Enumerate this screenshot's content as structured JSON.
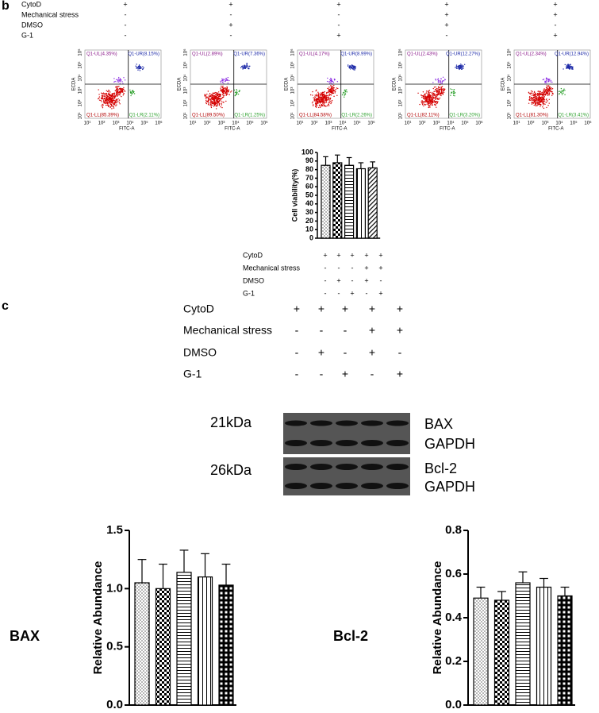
{
  "panel_b": {
    "label": "b",
    "treatments": {
      "rows": [
        {
          "name": "CytoD",
          "signs": [
            "+",
            "+",
            "+",
            "+",
            "+"
          ]
        },
        {
          "name": "Mechanical stress",
          "signs": [
            "-",
            "-",
            "-",
            "+",
            "+"
          ]
        },
        {
          "name": "DMSO",
          "signs": [
            "-",
            "+",
            "-",
            "+",
            "-"
          ]
        },
        {
          "name": "G-1",
          "signs": [
            "-",
            "-",
            "+",
            "-",
            "+"
          ]
        }
      ]
    },
    "flow_axis": {
      "x_label": "FITC-A",
      "y_label": "ECDA",
      "ticks": [
        "10¹",
        "10²",
        "10³",
        "10⁴",
        "10⁵",
        "10⁶"
      ]
    },
    "flow_plots": [
      {
        "UL": "Q1-UL(4.35%)",
        "UR": "Q1-UR(8.15%)",
        "LL": "Q1-LL(85.39%)",
        "LR": "Q1-LR(2.11%)"
      },
      {
        "UL": "Q1-UL(2.89%)",
        "UR": "Q1-UR(7.36%)",
        "LL": "Q1-LL(89.50%)",
        "LR": "Q1-LR(1.25%)"
      },
      {
        "UL": "Q1-UL(4.17%)",
        "UR": "Q1-UR(8.99%)",
        "LL": "Q1-LL(84.58%)",
        "LR": "Q1-LR(2.26%)"
      },
      {
        "UL": "Q1-UL(2.43%)",
        "UR": "Q1-UR(12.27%)",
        "LL": "Q1-LL(82.11%)",
        "LR": "Q1-LR(3.20%)"
      },
      {
        "UL": "Q1-UL(2.34%)",
        "UR": "Q1-UR(12.94%)",
        "LL": "Q1-LL(81.30%)",
        "LR": "Q1-LR(3.41%)"
      }
    ],
    "viability_treatments": {
      "rows": [
        {
          "name": "CytoD",
          "signs": [
            "+",
            "+",
            "+",
            "+",
            "+"
          ]
        },
        {
          "name": "Mechanical stress",
          "signs": [
            "-",
            "-",
            "-",
            "+",
            "+"
          ]
        },
        {
          "name": "DMSO",
          "signs": [
            "-",
            "+",
            "-",
            "+",
            "-"
          ]
        },
        {
          "name": "G-1",
          "signs": [
            "-",
            "-",
            "+",
            "-",
            "+"
          ]
        }
      ]
    }
  },
  "panel_c": {
    "label": "c",
    "treatments": {
      "rows": [
        {
          "name": "CytoD",
          "signs": [
            "+",
            "+",
            "+",
            "+",
            "+"
          ]
        },
        {
          "name": "Mechanical stress",
          "signs": [
            "-",
            "-",
            "-",
            "+",
            "+"
          ]
        },
        {
          "name": "DMSO",
          "signs": [
            "-",
            "+",
            "-",
            "+",
            "-"
          ]
        },
        {
          "name": "G-1",
          "signs": [
            "-",
            "-",
            "+",
            "-",
            "+"
          ]
        }
      ]
    },
    "blot": {
      "markers": [
        "21kDa",
        "26kDa"
      ],
      "proteins": [
        "BAX",
        "GAPDH",
        "Bcl-2",
        "GAPDH"
      ]
    },
    "bax_label": "BAX",
    "bcl2_label": "Bcl-2"
  },
  "chart_data": [
    {
      "type": "bar",
      "y_label": "Cell viability(%)",
      "color": "#000000",
      "values": [
        85,
        88,
        85,
        81,
        82
      ],
      "errors": [
        10,
        9,
        9,
        7,
        7
      ],
      "ylim": [
        0,
        100
      ],
      "yticks": [
        0,
        10,
        20,
        30,
        40,
        50,
        60,
        70,
        80,
        90,
        100
      ]
    },
    {
      "type": "bar",
      "y_label": "Relative Abundance",
      "color": "#000000",
      "values": [
        1.05,
        1.0,
        1.14,
        1.1,
        1.03
      ],
      "errors": [
        0.2,
        0.21,
        0.19,
        0.2,
        0.18
      ],
      "ylim": [
        0,
        1.5
      ],
      "yticks": [
        {
          "value": 0,
          "label": "0.0"
        },
        0.5,
        {
          "value": 1,
          "label": "1.0"
        },
        1.5
      ]
    },
    {
      "type": "bar",
      "y_label": "Relative Abundance",
      "color": "#000000",
      "values": [
        0.49,
        0.48,
        0.56,
        0.54,
        0.5
      ],
      "errors": [
        0.05,
        0.04,
        0.05,
        0.04,
        0.04
      ],
      "ylim": [
        0,
        0.8
      ],
      "yticks": [
        {
          "value": 0,
          "label": "0.0"
        },
        0.2,
        0.4,
        0.6,
        0.8
      ]
    }
  ]
}
